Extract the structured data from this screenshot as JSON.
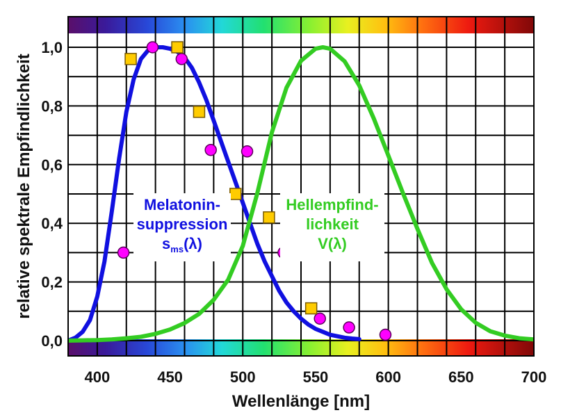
{
  "chart_data": {
    "type": "line",
    "title": "",
    "xlabel": "Wellenlänge [nm]",
    "ylabel": "relative spektrale Empfindlichkeit",
    "xlim": [
      380,
      700
    ],
    "ylim": [
      0,
      1.08
    ],
    "x_ticks": [
      400,
      450,
      500,
      550,
      600,
      650,
      700
    ],
    "y_ticks": [
      0,
      0.2,
      0.4,
      0.6,
      0.8,
      1.0
    ],
    "y_tick_labels": [
      "0,0",
      "0,2",
      "0,4",
      "0,6",
      "0,8",
      "1,0"
    ],
    "grid": true,
    "spectrum_bands": "top and bottom",
    "series": [
      {
        "color": "#1010e0",
        "kind": "curve",
        "x": [
          380,
          385,
          390,
          395,
          400,
          405,
          410,
          415,
          420,
          425,
          430,
          435,
          440,
          445,
          450,
          455,
          460,
          465,
          470,
          475,
          480,
          485,
          490,
          495,
          500,
          505,
          510,
          515,
          520,
          525,
          530,
          535,
          540,
          545,
          550,
          555,
          560,
          565,
          570,
          575,
          580
        ],
        "y": [
          0.0,
          0.01,
          0.03,
          0.07,
          0.15,
          0.27,
          0.44,
          0.62,
          0.78,
          0.89,
          0.96,
          0.99,
          1.0,
          1.0,
          0.995,
          0.985,
          0.965,
          0.93,
          0.88,
          0.82,
          0.75,
          0.68,
          0.61,
          0.54,
          0.47,
          0.4,
          0.33,
          0.27,
          0.22,
          0.17,
          0.13,
          0.1,
          0.075,
          0.055,
          0.04,
          0.03,
          0.02,
          0.015,
          0.01,
          0.007,
          0.005
        ]
      },
      {
        "color": "#33cc22",
        "kind": "curve",
        "x": [
          380,
          390,
          400,
          410,
          420,
          430,
          440,
          450,
          460,
          470,
          480,
          490,
          500,
          510,
          520,
          530,
          540,
          550,
          555,
          560,
          570,
          580,
          590,
          600,
          610,
          620,
          630,
          640,
          650,
          660,
          670,
          680,
          690,
          700
        ],
        "y": [
          0.0,
          0.001,
          0.002,
          0.004,
          0.008,
          0.013,
          0.023,
          0.038,
          0.06,
          0.091,
          0.139,
          0.208,
          0.323,
          0.503,
          0.71,
          0.862,
          0.954,
          0.995,
          1.0,
          0.995,
          0.952,
          0.87,
          0.757,
          0.631,
          0.503,
          0.381,
          0.265,
          0.175,
          0.107,
          0.061,
          0.032,
          0.017,
          0.008,
          0.004
        ]
      },
      {
        "color": "#ff00ff",
        "kind": "circles",
        "x": [
          418,
          438,
          458,
          478,
          503,
          528,
          553,
          573,
          598
        ],
        "y": [
          0.3,
          1.0,
          0.96,
          0.65,
          0.645,
          0.3,
          0.075,
          0.045,
          0.02
        ]
      },
      {
        "color": "#ffcc00",
        "kind": "squares",
        "x": [
          423,
          455,
          470,
          495,
          518,
          547
        ],
        "y": [
          0.96,
          1.0,
          0.78,
          0.5,
          0.42,
          0.11
        ]
      }
    ],
    "annotations": [
      {
        "lines": [
          "Melatonin-",
          "suppression"
        ],
        "symbol": "s",
        "subscript": "ms",
        "suffix": "(λ)",
        "color": "#1010e0"
      },
      {
        "lines": [
          "Hellempfind-",
          "lichkeit"
        ],
        "symbol": "V",
        "subscript": "",
        "suffix": "(λ)",
        "color": "#33cc22"
      }
    ]
  }
}
